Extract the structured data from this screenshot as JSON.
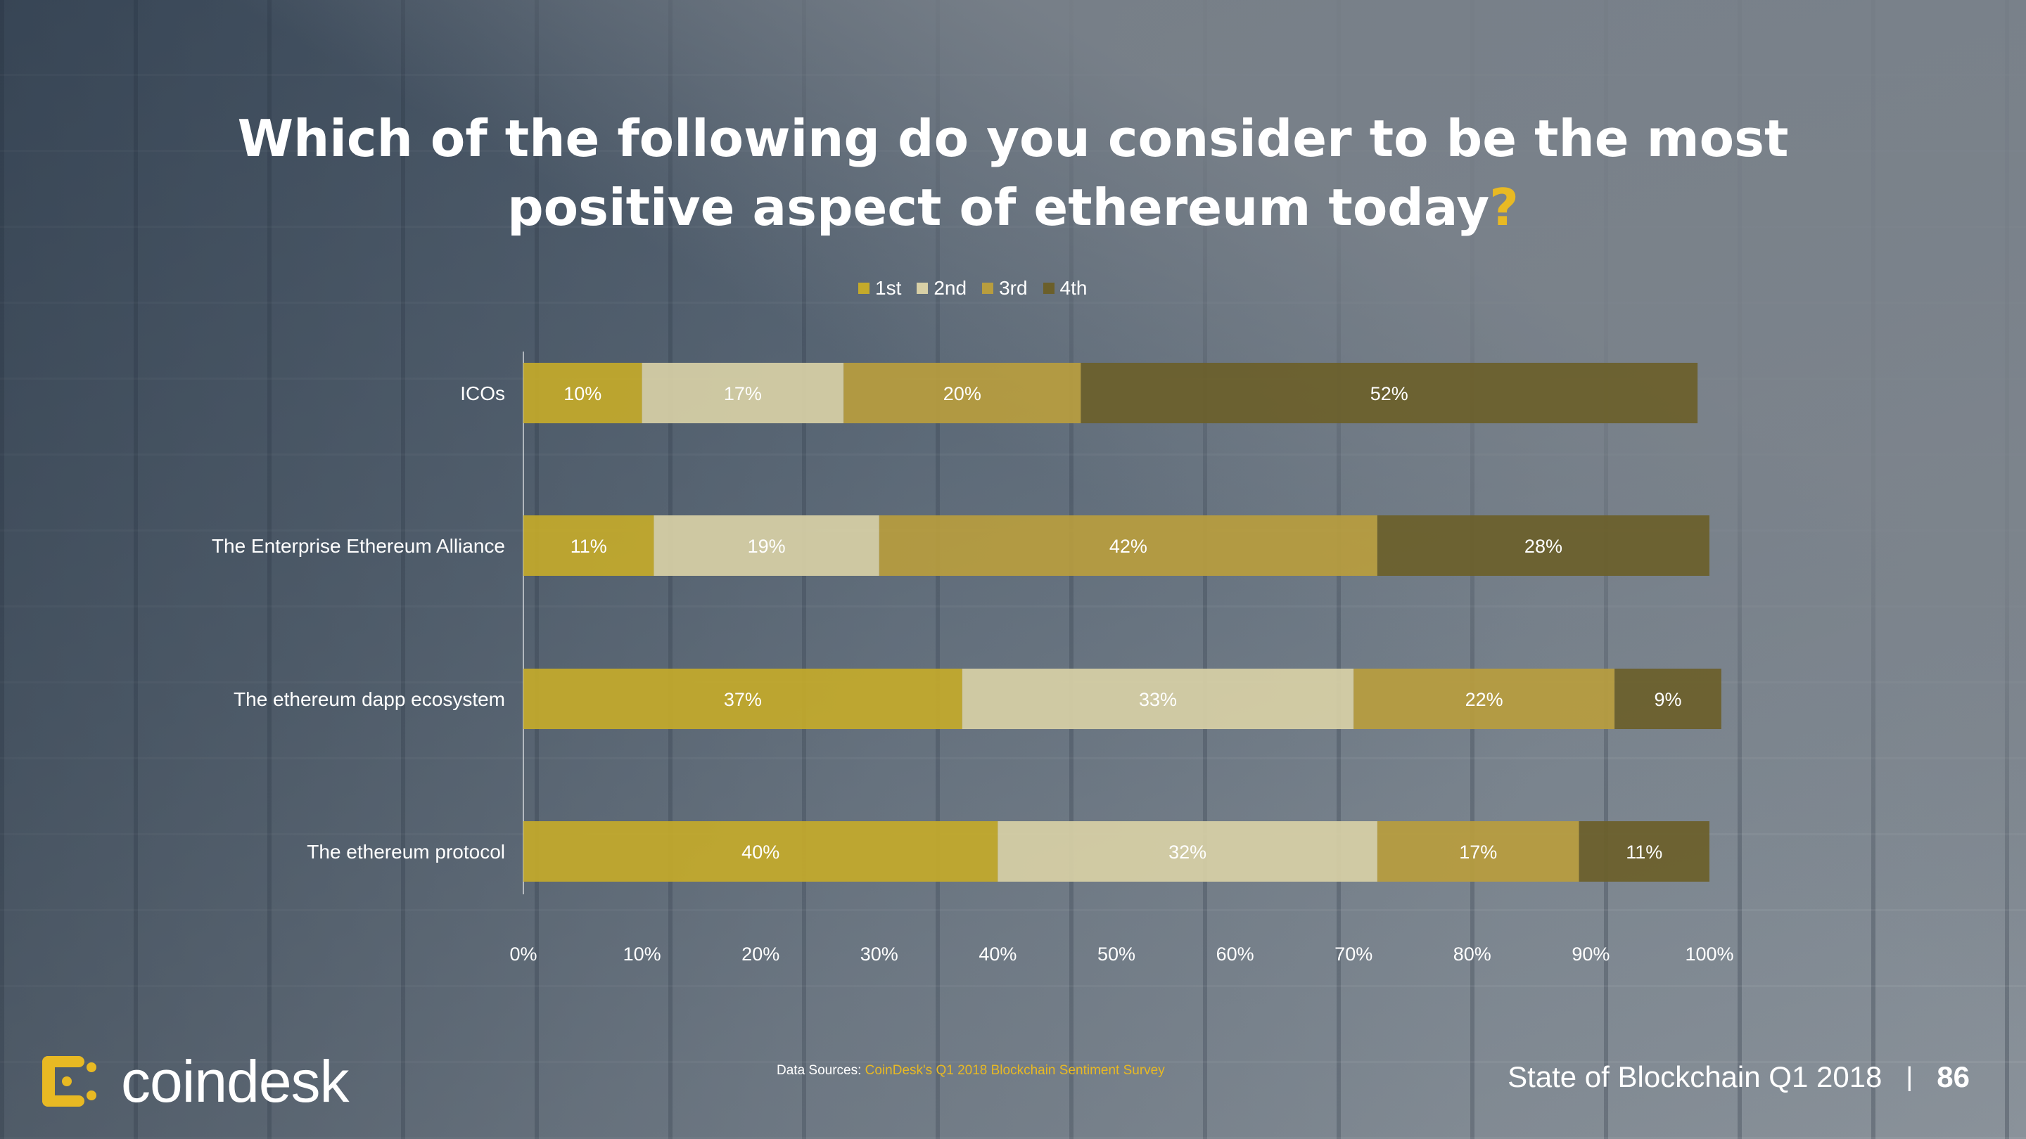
{
  "title": {
    "line1": "Which of the following do you consider to be the most",
    "line2": "positive aspect of ethereum today",
    "mark": "?"
  },
  "colors": {
    "first": "#c4aa2a",
    "second": "#d8d0a6",
    "third": "#b89d3e",
    "fourth": "#6b5f2a",
    "accent": "#e8b923"
  },
  "chart_data": {
    "type": "bar",
    "orientation": "horizontal",
    "stacked": true,
    "categories": [
      "ICOs",
      "The Enterprise Ethereum Alliance",
      "The ethereum dapp ecosystem",
      "The ethereum protocol"
    ],
    "series": [
      {
        "name": "1st",
        "values": [
          10,
          11,
          37,
          40
        ]
      },
      {
        "name": "2nd",
        "values": [
          17,
          19,
          33,
          32
        ]
      },
      {
        "name": "3rd",
        "values": [
          20,
          42,
          22,
          17
        ]
      },
      {
        "name": "4th",
        "values": [
          52,
          28,
          9,
          11
        ]
      }
    ],
    "x_ticks": [
      "0%",
      "10%",
      "20%",
      "30%",
      "40%",
      "50%",
      "60%",
      "70%",
      "80%",
      "90%",
      "100%"
    ],
    "xlim": [
      0,
      100
    ],
    "unit": "%",
    "legend_position": "top",
    "grid": false
  },
  "footer": {
    "source_label": "Data Sources: ",
    "source_value": "CoinDesk's Q1 2018 Blockchain Sentiment Survey",
    "logo_text": "coindesk",
    "report_title": "State of Blockchain Q1 2018",
    "separator": "|",
    "page_number": "86"
  },
  "icons": {
    "logo": "coindesk-logo-icon"
  }
}
